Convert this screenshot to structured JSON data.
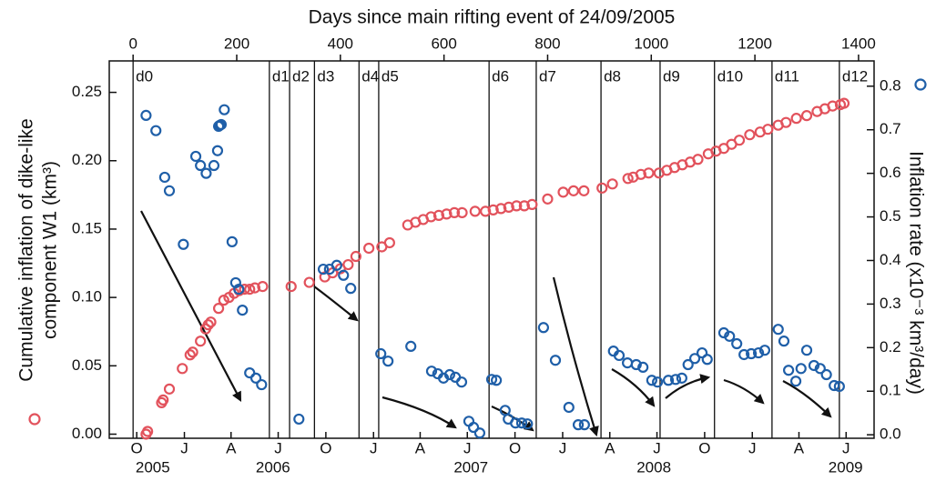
{
  "chart_data": {
    "type": "scatter",
    "title": "Days since main rifting event of 24/09/2005",
    "ylabel": [
      "Cumulative inflation of dike-like",
      "component W1 (km³)"
    ],
    "y2label": "Inflation rate (x10⁻³ km³/day)",
    "xlim": [
      -46,
      1430
    ],
    "xticks": [
      0,
      200,
      400,
      600,
      800,
      1000,
      1200,
      1400
    ],
    "ylim": [
      -0.003,
      0.273
    ],
    "yticks": [
      {
        "value": 0,
        "label": "0.00"
      },
      {
        "value": 0.05,
        "label": "0.05"
      },
      {
        "value": 0.1,
        "label": "0.10"
      },
      {
        "value": 0.15,
        "label": "0.15"
      },
      {
        "value": 0.2,
        "label": "0.20"
      },
      {
        "value": 0.25,
        "label": "0.25"
      }
    ],
    "y2lim": [
      -0.008,
      0.858
    ],
    "y2ticks": [
      {
        "value": 0,
        "label": "0.0"
      },
      {
        "value": 0.1,
        "label": "0.1"
      },
      {
        "value": 0.2,
        "label": "0.2"
      },
      {
        "value": 0.3,
        "label": "0.3"
      },
      {
        "value": 0.4,
        "label": "0.4"
      },
      {
        "value": 0.5,
        "label": "0.5"
      },
      {
        "value": 0.6,
        "label": "0.6"
      },
      {
        "value": 0.7,
        "label": "0.7"
      },
      {
        "value": 0.8,
        "label": "0.8"
      }
    ],
    "month_ticks": [
      {
        "value": 7,
        "label": "O"
      },
      {
        "value": 99,
        "label": "J"
      },
      {
        "value": 189,
        "label": "A"
      },
      {
        "value": 280,
        "label": "J"
      },
      {
        "value": 372,
        "label": "O"
      },
      {
        "value": 464,
        "label": "J"
      },
      {
        "value": 554,
        "label": "A"
      },
      {
        "value": 645,
        "label": "J"
      },
      {
        "value": 737,
        "label": "O"
      },
      {
        "value": 829,
        "label": "J"
      },
      {
        "value": 920,
        "label": "A"
      },
      {
        "value": 1011,
        "label": "J"
      },
      {
        "value": 1103,
        "label": "O"
      },
      {
        "value": 1195,
        "label": "J"
      },
      {
        "value": 1285,
        "label": "A"
      },
      {
        "value": 1376,
        "label": "J"
      }
    ],
    "year_labels": [
      {
        "value": 38,
        "label": "2005"
      },
      {
        "value": 270,
        "label": "2006"
      },
      {
        "value": 652,
        "label": "2007"
      },
      {
        "value": 1005,
        "label": "2008"
      },
      {
        "value": 1375,
        "label": "2009"
      }
    ],
    "dikes": [
      {
        "value": 0,
        "label": "d0"
      },
      {
        "value": 263,
        "label": "d1"
      },
      {
        "value": 302,
        "label": "d2"
      },
      {
        "value": 350,
        "label": "d3"
      },
      {
        "value": 436,
        "label": "d4"
      },
      {
        "value": 474,
        "label": "d5"
      },
      {
        "value": 687,
        "label": "d6"
      },
      {
        "value": 778,
        "label": "d7"
      },
      {
        "value": 903,
        "label": "d8"
      },
      {
        "value": 1017,
        "label": "d9"
      },
      {
        "value": 1122,
        "label": "d10"
      },
      {
        "value": 1233,
        "label": "d11"
      },
      {
        "value": 1363,
        "label": "d12"
      }
    ],
    "series": [
      {
        "color": "#e2525c",
        "axis": "y",
        "x": [
          25,
          28,
          55,
          58,
          70,
          95,
          110,
          115,
          130,
          140,
          145,
          150,
          165,
          175,
          185,
          195,
          205,
          215,
          225,
          235,
          250,
          305,
          340,
          370,
          385,
          400,
          415,
          430,
          455,
          480,
          495,
          530,
          545,
          560,
          575,
          590,
          605,
          620,
          635,
          660,
          680,
          695,
          710,
          725,
          740,
          755,
          770,
          800,
          830,
          850,
          870,
          905,
          925,
          955,
          965,
          980,
          995,
          1015,
          1030,
          1045,
          1060,
          1075,
          1090,
          1110,
          1125,
          1140,
          1155,
          1170,
          1190,
          1210,
          1225,
          1245,
          1260,
          1280,
          1300,
          1320,
          1335,
          1350,
          1365,
          1372
        ],
        "values": [
          0.0,
          0.002,
          0.023,
          0.025,
          0.033,
          0.048,
          0.058,
          0.06,
          0.068,
          0.077,
          0.08,
          0.082,
          0.092,
          0.098,
          0.1,
          0.103,
          0.105,
          0.106,
          0.106,
          0.107,
          0.108,
          0.108,
          0.111,
          0.115,
          0.118,
          0.121,
          0.124,
          0.13,
          0.136,
          0.137,
          0.14,
          0.153,
          0.155,
          0.157,
          0.159,
          0.16,
          0.161,
          0.162,
          0.162,
          0.163,
          0.163,
          0.164,
          0.165,
          0.166,
          0.167,
          0.167,
          0.168,
          0.172,
          0.177,
          0.178,
          0.178,
          0.18,
          0.183,
          0.187,
          0.188,
          0.19,
          0.191,
          0.191,
          0.193,
          0.195,
          0.197,
          0.199,
          0.201,
          0.205,
          0.207,
          0.209,
          0.212,
          0.215,
          0.219,
          0.221,
          0.223,
          0.226,
          0.228,
          0.231,
          0.233,
          0.236,
          0.238,
          0.24,
          0.241,
          0.242
        ]
      },
      {
        "color": "#1f5fa8",
        "axis": "y2",
        "x": [
          25,
          44,
          61,
          70,
          97,
          121,
          130,
          141,
          156,
          163,
          165,
          167,
          170,
          176,
          191,
          198,
          204,
          211,
          225,
          237,
          248,
          320,
          367,
          379,
          393,
          406,
          420,
          478,
          492,
          536,
          576,
          588,
          599,
          611,
          622,
          634,
          648,
          657,
          669,
          692,
          701,
          718,
          724,
          738,
          750,
          761,
          792,
          815,
          841,
          859,
          871,
          927,
          938,
          954,
          971,
          984,
          1001,
          1012,
          1033,
          1047,
          1059,
          1071,
          1084,
          1098,
          1108,
          1140,
          1151,
          1165,
          1179,
          1193,
          1207,
          1219,
          1245,
          1256,
          1265,
          1279,
          1289,
          1300,
          1314,
          1326,
          1338,
          1353,
          1363
        ],
        "values": [
          0.733,
          0.698,
          0.591,
          0.56,
          0.437,
          0.639,
          0.618,
          0.6,
          0.618,
          0.652,
          0.708,
          0.71,
          0.712,
          0.746,
          0.443,
          0.349,
          0.334,
          0.286,
          0.142,
          0.13,
          0.115,
          0.036,
          0.38,
          0.38,
          0.389,
          0.366,
          0.336,
          0.186,
          0.169,
          0.203,
          0.146,
          0.14,
          0.13,
          0.138,
          0.132,
          0.121,
          0.031,
          0.017,
          0.004,
          0.127,
          0.125,
          0.056,
          0.036,
          0.027,
          0.027,
          0.025,
          0.246,
          0.171,
          0.063,
          0.023,
          0.023,
          0.192,
          0.182,
          0.165,
          0.161,
          0.155,
          0.125,
          0.121,
          0.125,
          0.127,
          0.13,
          0.161,
          0.175,
          0.188,
          0.173,
          0.234,
          0.226,
          0.209,
          0.184,
          0.186,
          0.188,
          0.194,
          0.242,
          0.215,
          0.148,
          0.123,
          0.152,
          0.194,
          0.159,
          0.152,
          0.138,
          0.113,
          0.111
        ]
      }
    ]
  }
}
